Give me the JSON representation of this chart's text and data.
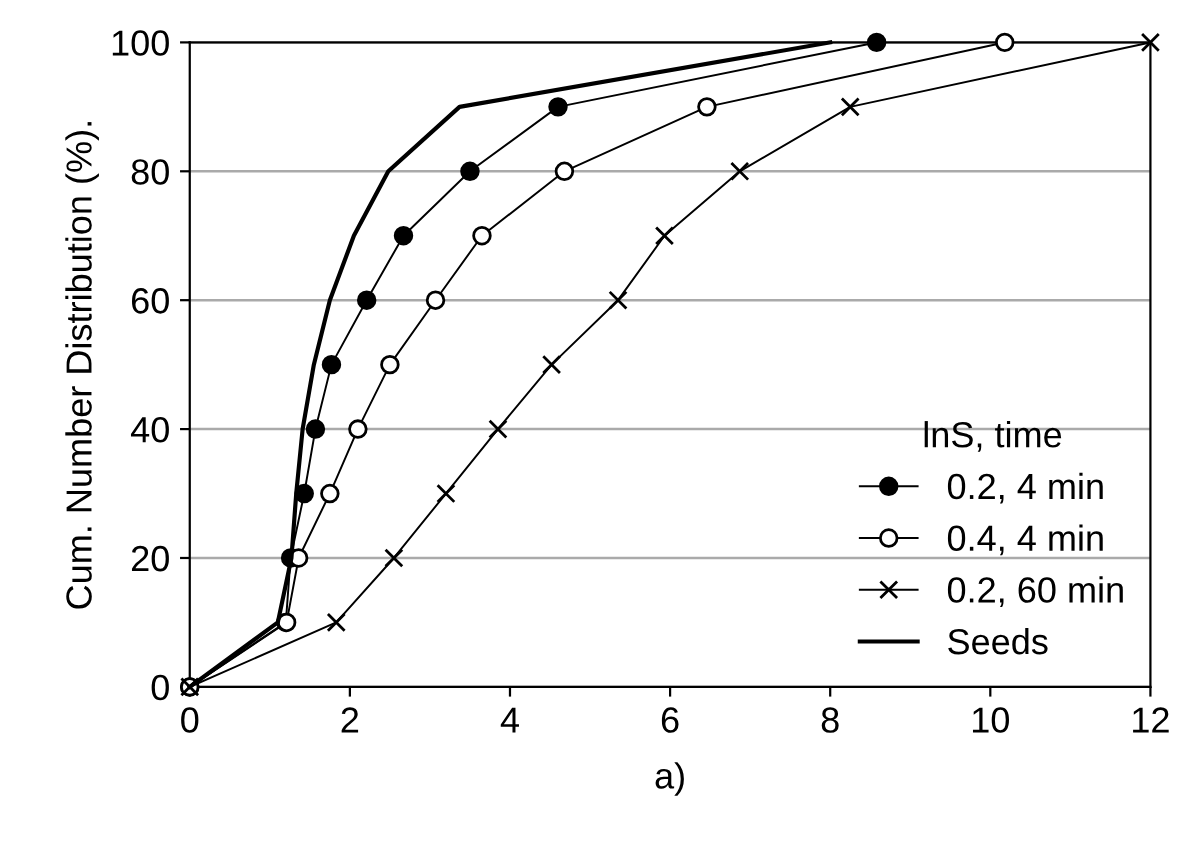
{
  "chart_data": {
    "type": "line",
    "xlabel": "a)",
    "ylabel": "Cum. Number Distribution (%).",
    "legend_title": "lnS, time",
    "legend": "bottom right",
    "grid": "y",
    "xlim": [
      0,
      12
    ],
    "xticks": [
      0,
      2,
      4,
      6,
      8,
      10,
      12
    ],
    "ylim": [
      0,
      100
    ],
    "yticks": [
      0,
      20,
      40,
      60,
      80,
      100
    ],
    "series": [
      {
        "name": "0.2, 4 min",
        "color": "#000000",
        "marker": "circle",
        "x": [
          0,
          1.2,
          1.26,
          1.43,
          1.57,
          1.77,
          2.21,
          2.67,
          3.5,
          4.6,
          8.58
        ],
        "values": [
          0,
          10,
          20,
          30,
          40,
          50,
          60,
          70,
          80,
          90,
          100
        ]
      },
      {
        "name": "0.4, 4 min",
        "color": "#000000",
        "marker": "open circle",
        "x": [
          0,
          1.21,
          1.36,
          1.75,
          2.1,
          2.5,
          3.07,
          3.65,
          4.68,
          6.46,
          10.18
        ],
        "values": [
          0,
          10,
          20,
          30,
          40,
          50,
          60,
          70,
          80,
          90,
          100
        ]
      },
      {
        "name": "0.2, 60 min",
        "color": "#000000",
        "marker": "cross",
        "x": [
          0,
          1.83,
          2.55,
          3.2,
          3.85,
          4.52,
          5.35,
          5.93,
          6.87,
          8.25,
          12
        ],
        "values": [
          0,
          10,
          20,
          30,
          40,
          50,
          60,
          70,
          80,
          90,
          100
        ]
      },
      {
        "name": "Seeds",
        "color": "#000000",
        "marker": "none",
        "x": [
          0,
          1.1,
          1.27,
          1.33,
          1.41,
          1.55,
          1.75,
          2.05,
          2.48,
          3.37,
          8.0
        ],
        "values": [
          0,
          10,
          20,
          30,
          40,
          50,
          60,
          70,
          80,
          90,
          100
        ]
      }
    ]
  }
}
